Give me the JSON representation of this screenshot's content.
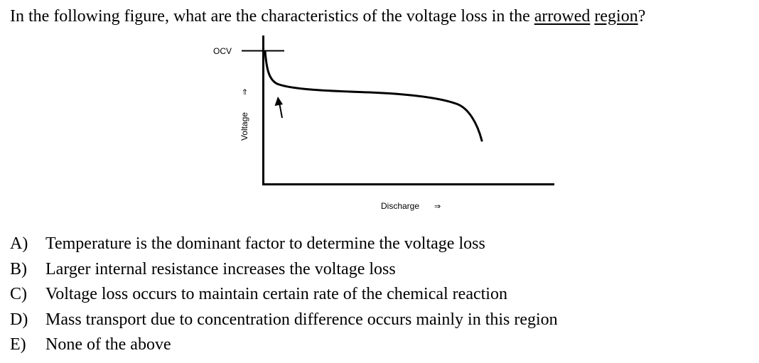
{
  "question": {
    "before": "In the following figure, what are the characteristics of the voltage loss in the ",
    "underlined": [
      "arrowed",
      "region"
    ],
    "after": "?"
  },
  "figure": {
    "ocv_label": "OCV",
    "y_axis_label": "Voltage",
    "y_axis_arrow": "⇒",
    "x_axis_label": "Discharge",
    "x_axis_arrow": "⇒",
    "annotation_arrow": "upward arrow pointing to initial voltage drop region"
  },
  "options": [
    {
      "letter": "A)",
      "text": "Temperature is the dominant factor to determine the voltage loss"
    },
    {
      "letter": "B)",
      "text": "Larger internal resistance increases the voltage loss"
    },
    {
      "letter": "C)",
      "text": "Voltage loss occurs to maintain certain rate of the chemical reaction"
    },
    {
      "letter": "D)",
      "text": "Mass transport due to concentration difference occurs mainly in this region"
    },
    {
      "letter": "E)",
      "text": "None of the above"
    }
  ]
}
